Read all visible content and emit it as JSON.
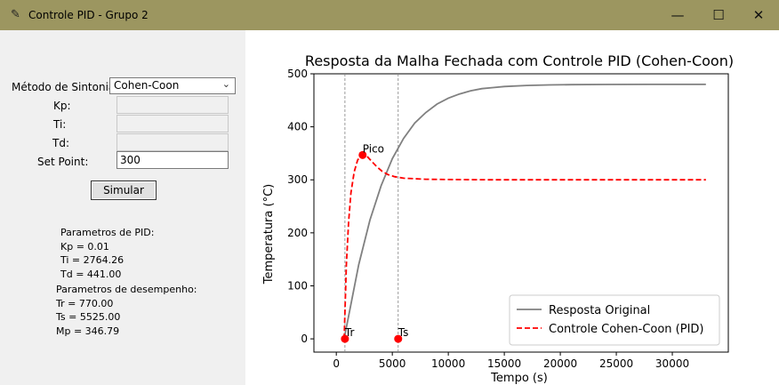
{
  "window": {
    "title": "Controle PID - Grupo 2",
    "minimize": "—",
    "maximize": "☐",
    "close": "✕"
  },
  "form": {
    "method_label": "Método de Sintonia:",
    "method_value": "Cohen-Coon",
    "kp_label": "Kp:",
    "ti_label": "Ti:",
    "td_label": "Td:",
    "setpoint_label": "Set Point:",
    "setpoint_value": "300",
    "simulate_label": "Simular"
  },
  "results": {
    "pid_header": "Parametros de PID:",
    "kp": "Kp = 0.01",
    "ti": "Ti = 2764.26",
    "td": "Td = 441.00",
    "perf_header": "Parametros de desempenho:",
    "tr": "Tr = 770.00",
    "ts": "Ts = 5525.00",
    "mp": "Mp = 346.79"
  },
  "chart_data": {
    "type": "line",
    "title": "Resposta da Malha Fechada com Controle PID (Cohen-Coon)",
    "xlabel": "Tempo (s)",
    "ylabel": "Temperatura (°C)",
    "xlim": [
      -2000,
      35000
    ],
    "ylim": [
      -25,
      500
    ],
    "xticks": [
      0,
      5000,
      10000,
      15000,
      20000,
      25000,
      30000
    ],
    "yticks": [
      0,
      100,
      200,
      300,
      400,
      500
    ],
    "grid": false,
    "legend_position": "bottom-right",
    "series": [
      {
        "name": "Resposta Original",
        "color": "#808080",
        "style": "solid",
        "x": [
          700,
          2000,
          3000,
          4000,
          5000,
          6000,
          7000,
          8000,
          9000,
          10000,
          11000,
          12000,
          13000,
          14000,
          15000,
          17000,
          19000,
          21000,
          24000,
          28000,
          33000
        ],
        "y": [
          0,
          140,
          224,
          289,
          340,
          378,
          407,
          427,
          443,
          454,
          462,
          468,
          472,
          474,
          476,
          478,
          479,
          479.5,
          479.8,
          480,
          480
        ]
      },
      {
        "name": "Controle Cohen-Coon (PID)",
        "color": "#ff0000",
        "style": "dashed",
        "x": [
          700,
          900,
          1100,
          1300,
          1600,
          1900,
          2200,
          2500,
          2800,
          3200,
          3600,
          4100,
          4600,
          5200,
          6000,
          7000,
          8000,
          10000,
          14000,
          20000,
          27000,
          33000
        ],
        "y": [
          0,
          140,
          220,
          275,
          315,
          337,
          346,
          347,
          343,
          334,
          325,
          316,
          310,
          306,
          303,
          302,
          301,
          300.5,
          300,
          300,
          300,
          300
        ]
      }
    ],
    "markers": [
      {
        "label": "Tr",
        "x": 770,
        "y": 0,
        "vline": true
      },
      {
        "label": "Ts",
        "x": 5525,
        "y": 0,
        "vline": true
      },
      {
        "label": "Pico",
        "x": 2350,
        "y": 346.79,
        "vline": false
      }
    ]
  }
}
